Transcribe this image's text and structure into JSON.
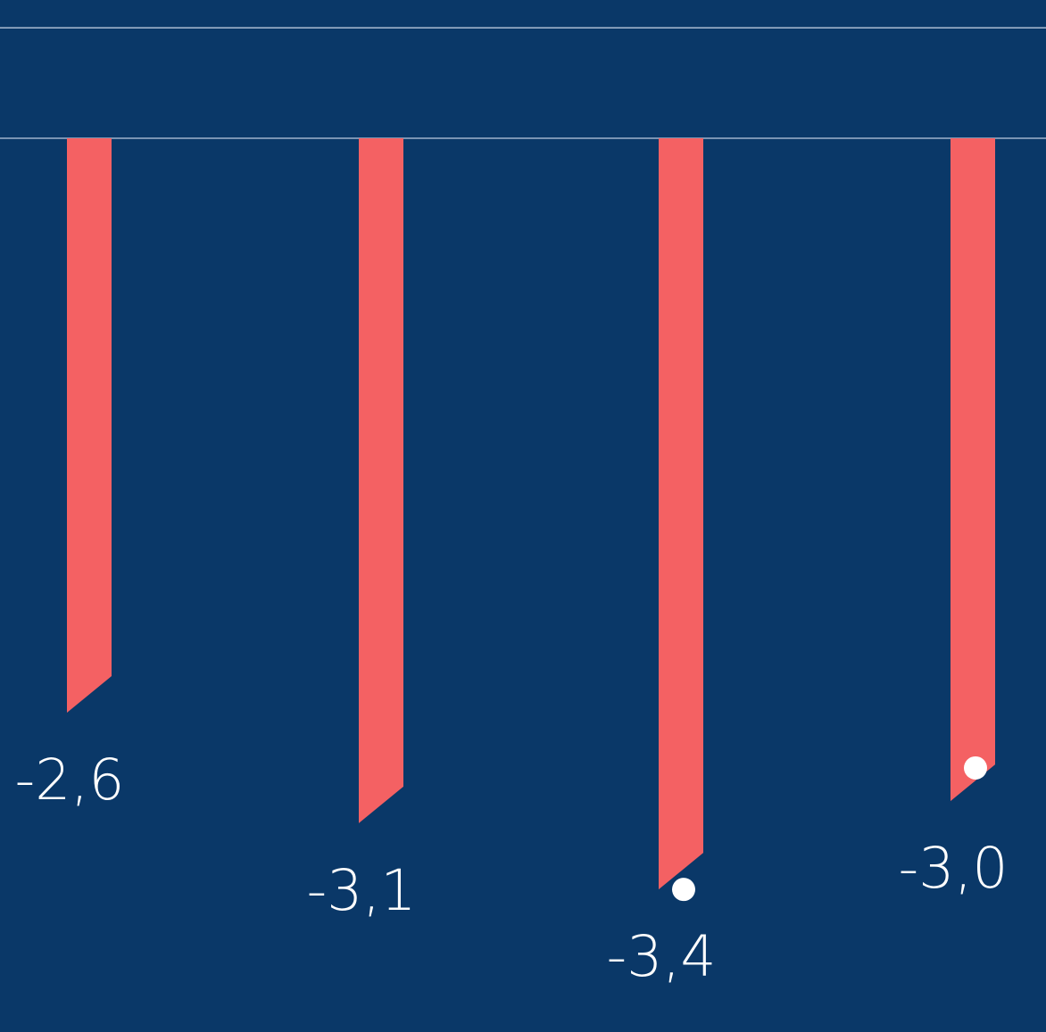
{
  "chart_data": {
    "type": "bar",
    "categories": [
      "",
      "",
      "",
      ""
    ],
    "series": [
      {
        "values": [
          -2.6,
          -3.1,
          -3.4,
          -3.0
        ],
        "labels": [
          "-2,6",
          "-3,1",
          "-3,4",
          "-3,0"
        ]
      }
    ],
    "markers": [
      {
        "category_index": 2,
        "value": -3.4
      },
      {
        "category_index": 3,
        "value": -2.85
      }
    ],
    "ylim": [
      -3.4,
      0.5
    ],
    "gridlines": [
      0,
      0.5
    ],
    "grid": true,
    "legend": "none",
    "colors": {
      "background": "#0a3868",
      "bar": "#f46163",
      "gridline": "#9fb3cc",
      "label": "#ffffff",
      "marker": "#ffffff"
    }
  }
}
